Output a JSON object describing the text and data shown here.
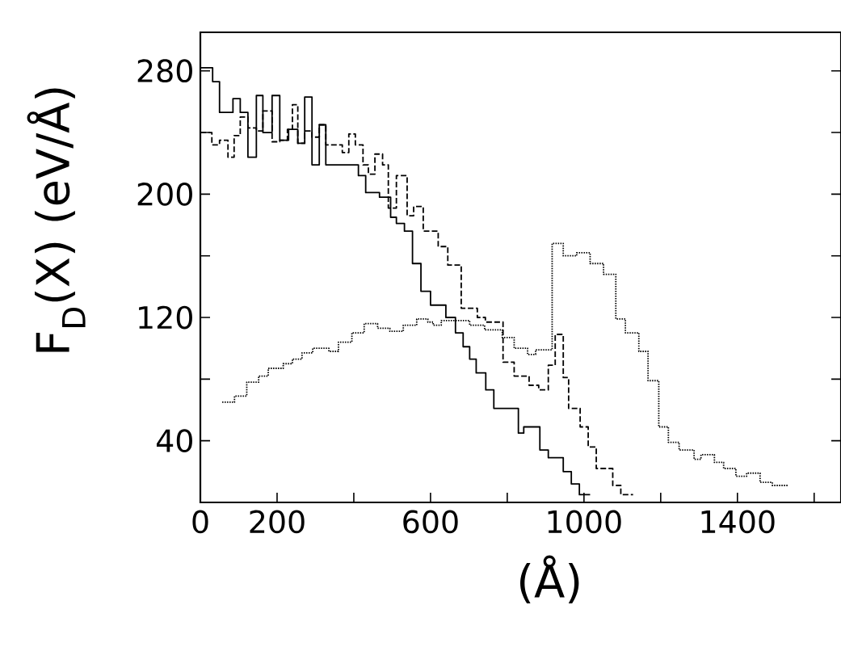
{
  "chart_data": {
    "type": "step",
    "ylabel": "F$_{D}$(X) (eV/Å)",
    "xlabel": "(Å)",
    "xlim": [
      0,
      1670
    ],
    "ylim": [
      0,
      305
    ],
    "xticks": [
      0,
      200,
      {
        "value": 400,
        "label": null
      },
      600,
      {
        "value": 800,
        "label": null
      },
      1000,
      {
        "value": 1200,
        "label": null
      },
      1400,
      {
        "value": 1600,
        "label": null
      }
    ],
    "yticks": [
      40,
      {
        "value": 80,
        "label": null
      },
      120,
      {
        "value": 160,
        "label": null
      },
      200,
      {
        "value": 240,
        "label": null
      },
      280
    ],
    "series": [
      {
        "color": "#000000",
        "line_style": "solid",
        "x": [
          0,
          32,
          50,
          85,
          104,
          124,
          146,
          163,
          187,
          207,
          230,
          254,
          272,
          291,
          310,
          327,
          412,
          431,
          467,
          496,
          511,
          532,
          553,
          575,
          600,
          640,
          665,
          685,
          702,
          719,
          744,
          765,
          829,
          843,
          885,
          907,
          946,
          967,
          988,
          1016
        ],
        "values": [
          282,
          273,
          253,
          262,
          253,
          224,
          264,
          240,
          264,
          235,
          242,
          233,
          263,
          219,
          245,
          219,
          212,
          201,
          198,
          185,
          181,
          176,
          155,
          137,
          128,
          120,
          110,
          101,
          93,
          84,
          73,
          61,
          45,
          49,
          34,
          29,
          20,
          12,
          5,
          5
        ]
      },
      {
        "color": "#000000",
        "line_style": "dashed",
        "x": [
          0,
          30,
          50,
          72,
          88,
          104,
          124,
          146,
          163,
          187,
          207,
          227,
          240,
          254,
          272,
          291,
          310,
          327,
          370,
          387,
          404,
          424,
          438,
          455,
          475,
          490,
          511,
          539,
          556,
          581,
          620,
          645,
          680,
          722,
          743,
          789,
          818,
          857,
          882,
          907,
          925,
          946,
          960,
          990,
          1011,
          1032,
          1075,
          1096,
          1128
        ],
        "values": [
          240,
          232,
          235,
          224,
          238,
          250,
          243,
          241,
          254,
          234,
          235,
          242,
          258,
          233,
          241,
          237,
          245,
          232,
          227,
          239,
          232,
          219,
          213,
          226,
          219,
          191,
          212,
          186,
          192,
          176,
          166,
          154,
          126,
          120,
          117,
          91,
          82,
          76,
          73,
          89,
          109,
          81,
          61,
          49,
          36,
          22,
          11,
          5,
          5
        ]
      },
      {
        "color": "#000000",
        "line_style": "dotted",
        "x": [
          57,
          89,
          121,
          152,
          177,
          216,
          240,
          265,
          293,
          335,
          360,
          395,
          427,
          462,
          494,
          529,
          564,
          593,
          607,
          628,
          702,
          741,
          787,
          818,
          853,
          874,
          917,
          946,
          981,
          1016,
          1051,
          1083,
          1108,
          1143,
          1167,
          1195,
          1220,
          1248,
          1287,
          1305,
          1340,
          1364,
          1396,
          1424,
          1459,
          1491,
          1533
        ],
        "values": [
          65,
          69,
          78,
          82,
          87,
          90,
          93,
          97,
          100,
          98,
          104,
          110,
          116,
          113,
          111,
          115,
          119,
          117,
          115,
          118,
          115,
          112,
          107,
          100,
          96,
          99,
          168,
          160,
          162,
          155,
          148,
          119,
          110,
          98,
          79,
          49,
          39,
          34,
          28,
          31,
          26,
          22,
          17,
          19,
          13,
          11,
          11
        ]
      }
    ]
  }
}
